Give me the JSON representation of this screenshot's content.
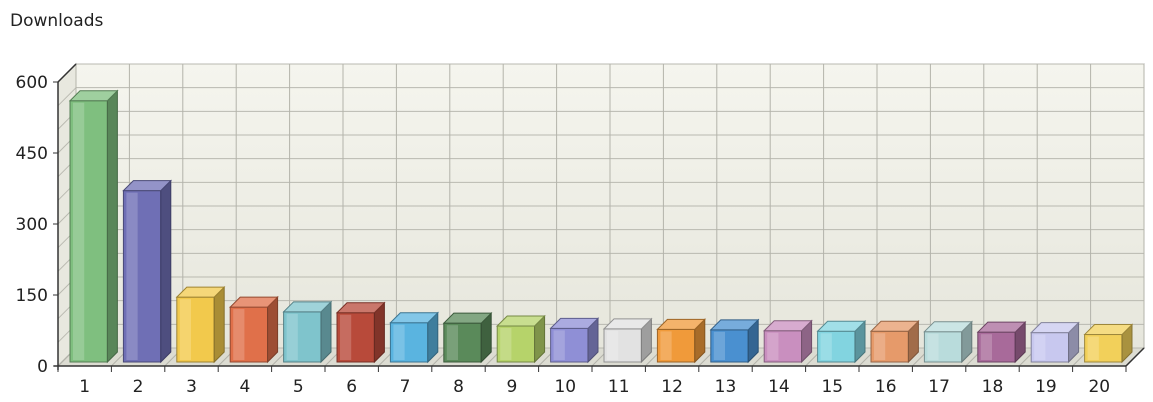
{
  "chart_data": {
    "type": "bar",
    "title": "",
    "ylabel": "Downloads",
    "xlabel": "",
    "categories": [
      "1",
      "2",
      "3",
      "4",
      "5",
      "6",
      "7",
      "8",
      "9",
      "10",
      "11",
      "12",
      "13",
      "14",
      "15",
      "16",
      "17",
      "18",
      "19",
      "20"
    ],
    "values": [
      552,
      362,
      137,
      116,
      106,
      104,
      83,
      82,
      76,
      71,
      70,
      69,
      68,
      66,
      65,
      65,
      64,
      63,
      62,
      58
    ],
    "ylim": [
      0,
      600
    ],
    "yticks": [
      0,
      150,
      300,
      450,
      600
    ],
    "grid": true,
    "legend": "none",
    "colors": [
      "#7fbf7f",
      "#6f6fb5",
      "#f2c94c",
      "#e0704a",
      "#7fc4cc",
      "#b84a3a",
      "#5ab4e0",
      "#5a8a5a",
      "#b6d36a",
      "#8f8fd6",
      "#e2e2e2",
      "#f09a3a",
      "#4a90d0",
      "#c98fbf",
      "#82d4e0",
      "#e69a6a",
      "#b9dcdc",
      "#a86a9a",
      "#c8c8ef",
      "#f2d05a"
    ]
  }
}
